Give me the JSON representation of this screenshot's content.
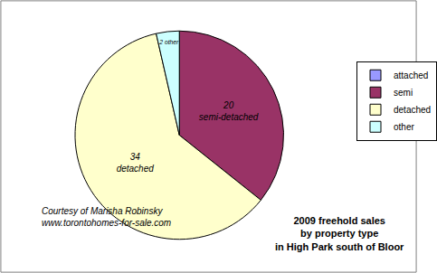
{
  "chart_data": {
    "type": "pie",
    "title": "2009 freehold sales\nby property type\nin High Park south of Bloor",
    "annotations": [
      "Courtesy of Marisha Robinsky\nwww.torontohomes-for-sale.com"
    ],
    "categories": [
      "attached",
      "semi",
      "detached",
      "other"
    ],
    "values": [
      0,
      20,
      34,
      2
    ],
    "value_labels": [
      null,
      "20\nsemi-detached",
      "34\ndetached",
      "2 other"
    ],
    "colors": [
      "#9999ff",
      "#993366",
      "#ffffcc",
      "#ccffff"
    ],
    "data_labels": true,
    "legend": "right"
  }
}
